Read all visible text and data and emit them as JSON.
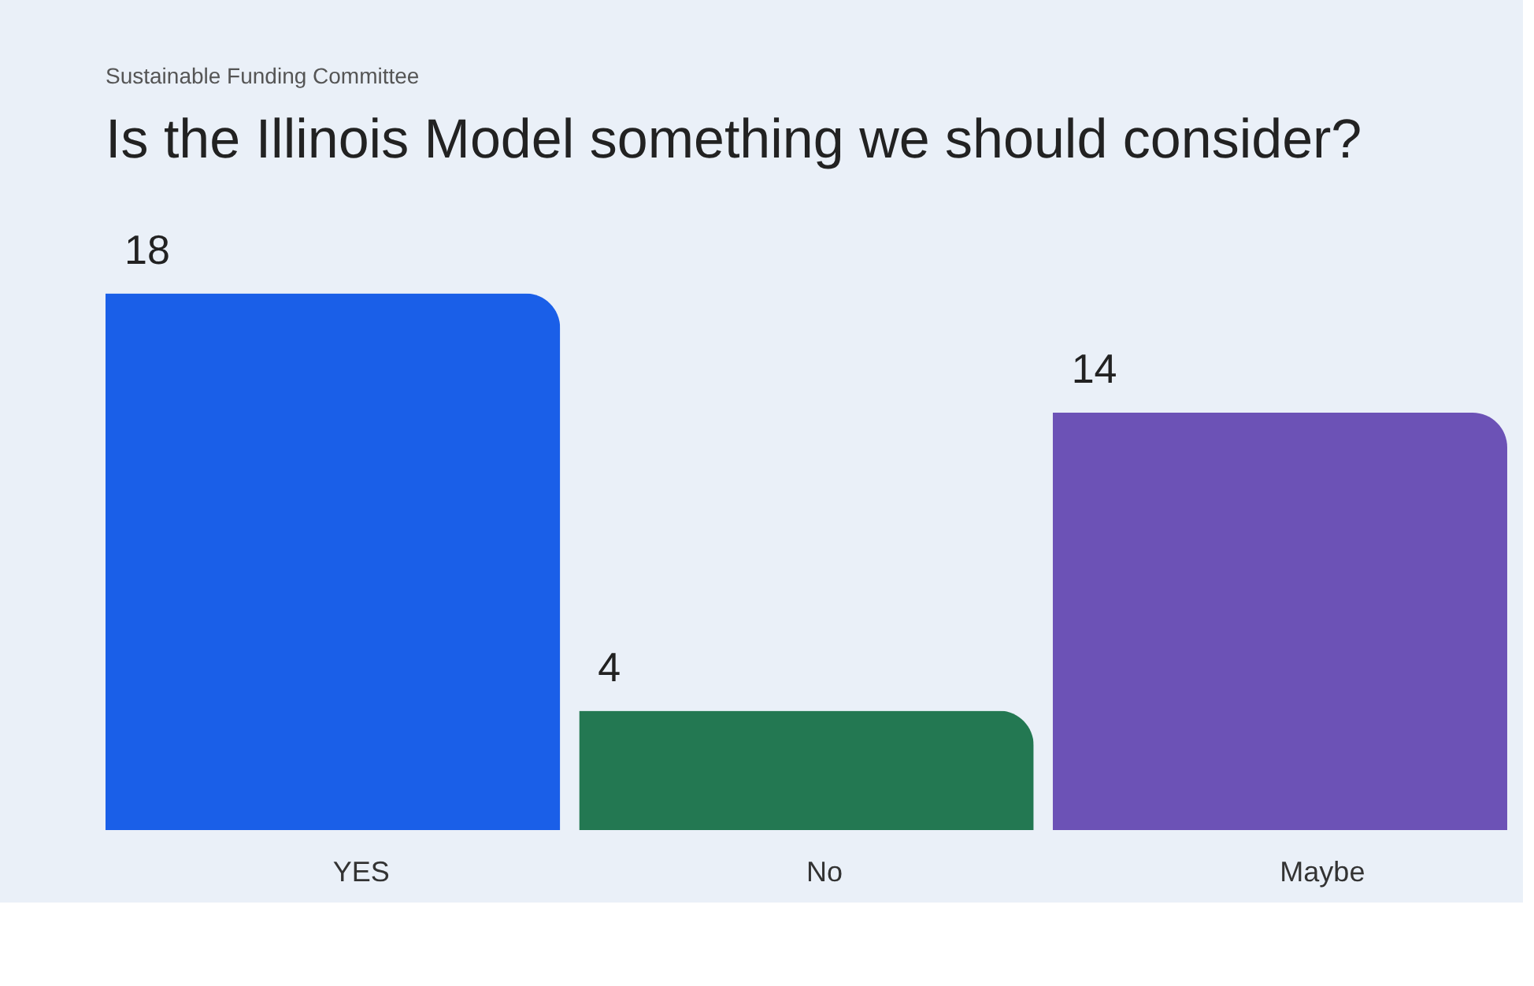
{
  "chart_data": {
    "type": "bar",
    "subtitle": "Sustainable Funding Committee",
    "title": "Is the Illinois Model something we should consider?",
    "categories": [
      "YES",
      "No",
      "Maybe"
    ],
    "values": [
      18,
      4,
      14
    ],
    "colors": [
      "#1a5fe8",
      "#237852",
      "#6c52b6"
    ],
    "data_labels": true
  }
}
